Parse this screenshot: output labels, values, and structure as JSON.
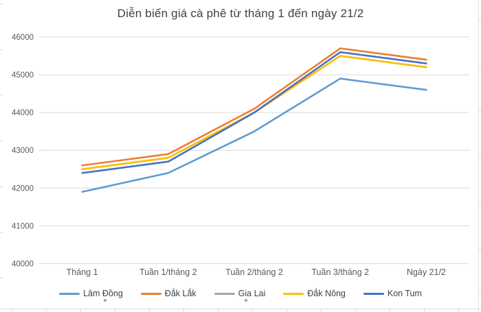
{
  "title": "Diễn biến giá cà phê từ tháng 1 đến ngày 21/2",
  "chart_data": {
    "type": "line",
    "title": "Diễn biến giá cà phê từ tháng 1 đến ngày 21/2",
    "categories": [
      "Tháng 1",
      "Tuần 1/tháng 2",
      "Tuần 2/tháng 2",
      "Tuần 3/tháng 2",
      "Ngày 21/2"
    ],
    "series": [
      {
        "name": "Lâm Đồng",
        "color": "#5B9BD5",
        "values": [
          41900,
          42400,
          43500,
          44900,
          44600
        ]
      },
      {
        "name": "Đắk Lắk",
        "color": "#ED7D31",
        "values": [
          42600,
          42900,
          44100,
          45700,
          45400
        ]
      },
      {
        "name": "Gia Lai",
        "color": "#A5A5A5",
        "values": [
          42500,
          42800,
          44000,
          45500,
          45200
        ]
      },
      {
        "name": "Đắk Nông",
        "color": "#FFC000",
        "values": [
          42500,
          42800,
          44000,
          45500,
          45200
        ]
      },
      {
        "name": "Kon Tum",
        "color": "#4472C4",
        "values": [
          42400,
          42700,
          44000,
          45600,
          45300
        ]
      }
    ],
    "y_ticks": [
      "40000",
      "41000",
      "42000",
      "43000",
      "44000",
      "45000",
      "46000"
    ],
    "ylim": [
      40000,
      46000
    ],
    "grid": "horizontal",
    "gridline_color": "#D9D9D9",
    "tick_label_color": "#595959",
    "title_color": "#404040",
    "legend_position": "bottom",
    "note": "Gia Lai series coincides with Đắk Nông and is hidden beneath it in the rendering"
  }
}
